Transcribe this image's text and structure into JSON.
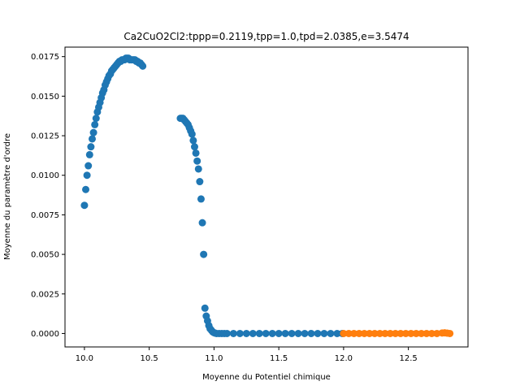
{
  "chart_data": {
    "type": "scatter",
    "title": "Ca2CuO2Cl2:tppp=0.2119,tpp=1.0,tpd=2.0385,e=3.5474",
    "xlabel": "Moyenne du Potentiel chimique",
    "ylabel": "Moyenne du paramètre d'ordre",
    "xlim": [
      9.85,
      12.96
    ],
    "ylim": [
      -0.00085,
      0.0181
    ],
    "xticks": [
      10.0,
      10.5,
      11.0,
      11.5,
      12.0,
      12.5
    ],
    "xtick_labels": [
      "10.0",
      "10.5",
      "11.0",
      "11.5",
      "12.0",
      "12.5"
    ],
    "yticks": [
      0,
      0.0025,
      0.005,
      0.0075,
      0.01,
      0.0125,
      0.015,
      0.0175
    ],
    "ytick_labels": [
      "0.0000",
      "0.0025",
      "0.0050",
      "0.0075",
      "0.0100",
      "0.0125",
      "0.0150",
      "0.0175"
    ],
    "grid": false,
    "series": [
      {
        "color": "#1f77b4",
        "x": [
          10.0,
          10.01,
          10.02,
          10.03,
          10.04,
          10.05,
          10.06,
          10.07,
          10.08,
          10.09,
          10.1,
          10.11,
          10.12,
          10.13,
          10.14,
          10.15,
          10.16,
          10.17,
          10.18,
          10.19,
          10.2,
          10.21,
          10.22,
          10.23,
          10.24,
          10.25,
          10.26,
          10.27,
          10.28,
          10.29,
          10.3,
          10.31,
          10.32,
          10.33,
          10.34,
          10.35,
          10.36,
          10.37,
          10.38,
          10.39,
          10.4,
          10.41,
          10.42,
          10.43,
          10.44,
          10.45,
          10.74,
          10.75,
          10.76,
          10.77,
          10.78,
          10.79,
          10.8,
          10.81,
          10.82,
          10.83,
          10.84,
          10.85,
          10.86,
          10.87,
          10.88,
          10.89,
          10.9,
          10.91,
          10.92,
          10.93,
          10.94,
          10.95,
          10.96,
          10.97,
          10.98,
          10.99,
          11.0,
          11.01,
          11.02,
          11.04,
          11.06,
          11.08,
          11.1,
          11.15,
          11.2,
          11.25,
          11.3,
          11.35,
          11.4,
          11.45,
          11.5,
          11.55,
          11.6,
          11.65,
          11.7,
          11.75,
          11.8,
          11.85,
          11.9,
          11.95,
          11.99
        ],
        "y": [
          0.0081,
          0.0091,
          0.01,
          0.0106,
          0.0113,
          0.0118,
          0.0123,
          0.0127,
          0.0132,
          0.0136,
          0.014,
          0.0143,
          0.0146,
          0.0149,
          0.0152,
          0.0154,
          0.0157,
          0.0159,
          0.0161,
          0.0163,
          0.0164,
          0.0166,
          0.0167,
          0.0168,
          0.0169,
          0.017,
          0.0171,
          0.0172,
          0.0172,
          0.0173,
          0.0173,
          0.0173,
          0.0174,
          0.0174,
          0.0174,
          0.0173,
          0.0173,
          0.0173,
          0.0173,
          0.0173,
          0.0172,
          0.0172,
          0.0171,
          0.0171,
          0.017,
          0.0169,
          0.0136,
          0.0136,
          0.0136,
          0.0135,
          0.0134,
          0.0133,
          0.0132,
          0.013,
          0.0128,
          0.0126,
          0.0122,
          0.0118,
          0.0114,
          0.0109,
          0.0104,
          0.0096,
          0.0085,
          0.007,
          0.005,
          0.0016,
          0.0011,
          0.0008,
          0.0005,
          0.0003,
          0.0002,
          0.0001,
          5e-05,
          2e-05,
          0.0,
          0.0,
          0.0,
          0.0,
          0.0,
          0.0,
          0.0,
          0.0,
          0.0,
          0.0,
          0.0,
          0.0,
          0.0,
          0.0,
          0.0,
          0.0,
          0.0,
          0.0,
          0.0,
          0.0,
          0.0,
          0.0,
          0.0
        ]
      },
      {
        "color": "#ff7f0e",
        "x": [
          12.0,
          12.04,
          12.08,
          12.12,
          12.16,
          12.2,
          12.24,
          12.28,
          12.32,
          12.36,
          12.4,
          12.44,
          12.48,
          12.52,
          12.56,
          12.6,
          12.64,
          12.68,
          12.72,
          12.76,
          12.78,
          12.8,
          12.82
        ],
        "y": [
          0.0,
          0.0,
          0.0,
          0.0,
          0.0,
          0.0,
          0.0,
          0.0,
          0.0,
          0.0,
          0.0,
          0.0,
          0.0,
          0.0,
          0.0,
          0.0,
          0.0,
          0.0,
          0.0,
          3e-05,
          4e-05,
          2e-05,
          0.0
        ]
      }
    ]
  }
}
